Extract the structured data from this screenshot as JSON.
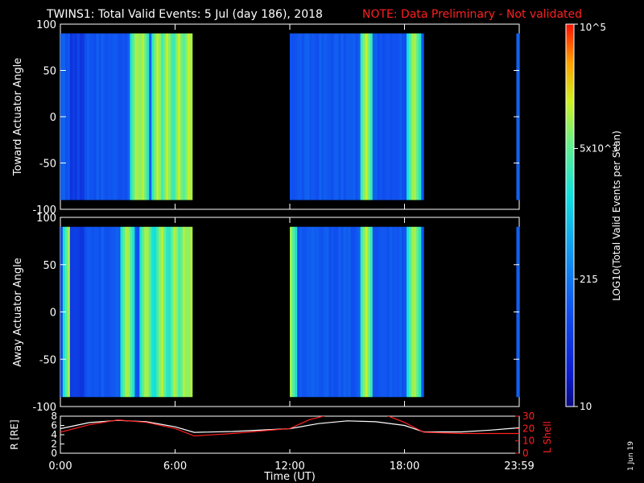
{
  "header": {
    "title": "TWINS1: Total Valid Events:  5 Jul (day 186), 2018",
    "note": "NOTE: Data Preliminary - Not validated"
  },
  "colorbar": {
    "label": "LOG10(Total Valid Events per Scan)",
    "tick_labels": [
      "10",
      "215",
      "5x10^3",
      "10^5"
    ]
  },
  "footer": {
    "date_stamp": "1 Jun 19"
  },
  "chart_data": [
    {
      "type": "heatmap",
      "title": "TWINS1: Total Valid Events:  5 Jul (day 186), 2018",
      "ylabel": "Toward Actuator Angle",
      "ylim": [
        -100,
        100
      ],
      "yticks": [
        "100",
        "50",
        "0",
        "-50",
        "-100"
      ],
      "data_ylim": [
        -90,
        90
      ],
      "xlim": [
        0,
        24
      ],
      "data_intervals_ut": [
        [
          0.0,
          6.9
        ],
        [
          12.0,
          19.0
        ],
        [
          23.85,
          24.0
        ]
      ],
      "dark_region_ut": [
        [
          0.5,
          1.2
        ]
      ],
      "high_intensity_bands_ut": [
        4.0,
        4.3,
        5.1,
        5.6,
        6.2,
        6.7,
        16.0,
        18.5
      ],
      "color_scale": "log10",
      "zlim": [
        10,
        100000
      ]
    },
    {
      "type": "heatmap",
      "ylabel": "Away Actuator Angle",
      "ylim": [
        -100,
        100
      ],
      "yticks": [
        "100",
        "50",
        "0",
        "-50",
        "-100"
      ],
      "data_ylim": [
        -90,
        90
      ],
      "xlim": [
        0,
        24
      ],
      "data_intervals_ut": [
        [
          0.0,
          6.9
        ],
        [
          12.0,
          19.0
        ],
        [
          23.85,
          24.0
        ]
      ],
      "dark_region_ut": [
        [
          0.5,
          1.2
        ]
      ],
      "high_intensity_bands_ut": [
        0.5,
        3.5,
        4.5,
        5.3,
        6.0,
        6.5,
        12.0,
        16.0,
        18.5
      ],
      "color_scale": "log10",
      "zlim": [
        10,
        100000
      ]
    },
    {
      "type": "line",
      "xlabel": "Time (UT)",
      "xticks": [
        "0:00",
        "6:00",
        "12:00",
        "18:00",
        "23:59"
      ],
      "xlim": [
        0,
        24
      ],
      "ylabel_left": "R [RE]",
      "ylim_left": [
        0,
        8
      ],
      "yticks_left": [
        "0",
        "2",
        "4",
        "6",
        "8"
      ],
      "ylabel_right": "L Shell",
      "ylim_right": [
        0,
        30
      ],
      "yticks_right": [
        "0",
        "10",
        "20",
        "30"
      ],
      "series": [
        {
          "name": "R [RE]",
          "color": "#ffffff",
          "x": [
            0,
            1.5,
            3,
            4.5,
            6,
            7,
            9,
            12,
            13.5,
            15,
            16.5,
            18,
            19,
            21,
            22.5,
            24
          ],
          "y": [
            5.3,
            6.6,
            7.1,
            6.8,
            5.7,
            4.5,
            4.7,
            5.3,
            6.4,
            7.0,
            6.8,
            6.0,
            4.6,
            4.6,
            5.0,
            5.5
          ]
        },
        {
          "name": "L Shell",
          "color": "#ff2020",
          "x": [
            0,
            1.5,
            3,
            4.5,
            6,
            7,
            9,
            12,
            13,
            14,
            16,
            17,
            18,
            19,
            21,
            24
          ],
          "y": [
            17,
            23,
            27,
            25,
            20,
            14,
            16,
            20,
            27,
            31,
            31,
            31,
            25,
            17,
            16,
            16
          ]
        }
      ]
    }
  ]
}
